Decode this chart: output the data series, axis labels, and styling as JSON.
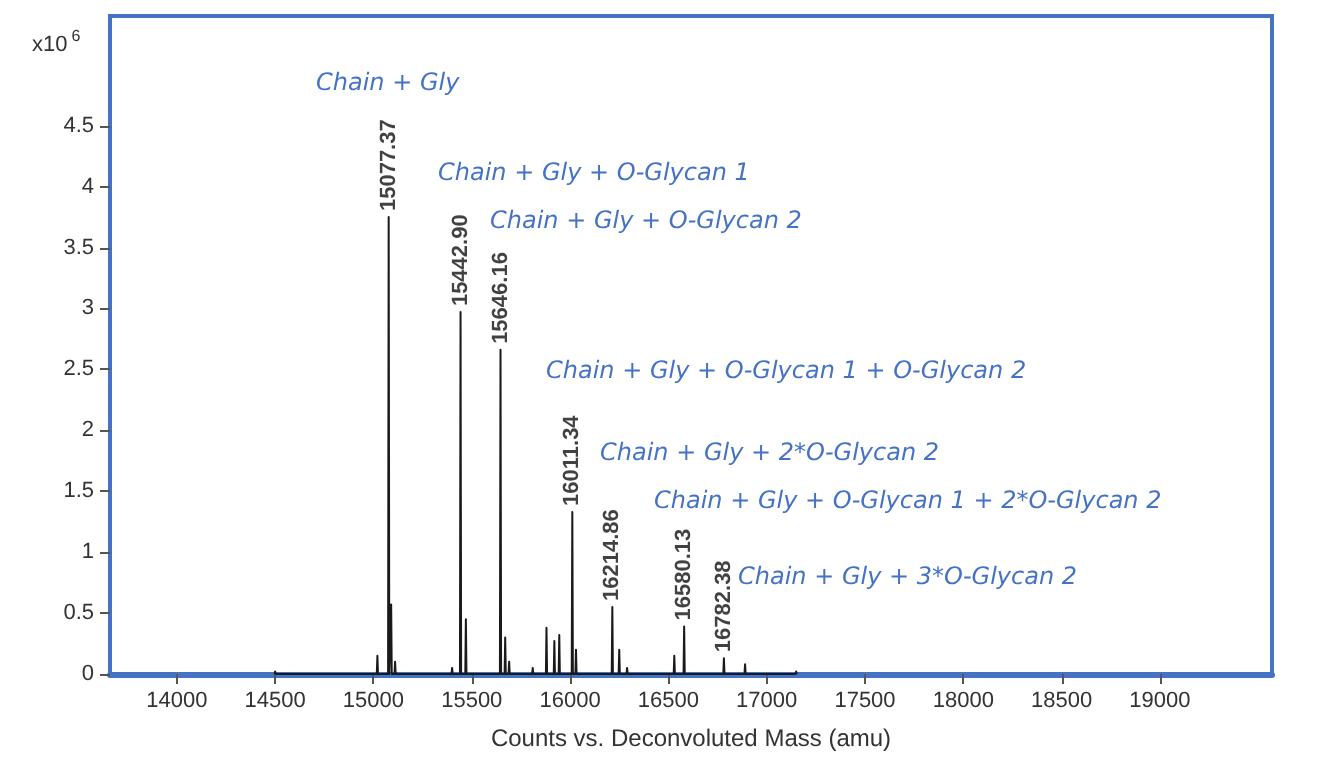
{
  "chart_data": {
    "type": "line",
    "xlabel": "Counts vs. Deconvoluted Mass (amu)",
    "ylabel": "x10$^{6}$",
    "x": [
      14497,
      14500,
      14503,
      15017,
      15020,
      15023,
      15074.37,
      15077.37,
      15080.37,
      15087,
      15090,
      15093,
      15107,
      15110,
      15113,
      15397,
      15400,
      15403,
      15439.9,
      15442.9,
      15445.9,
      15467,
      15470,
      15473,
      15643.16,
      15646.16,
      15649.16,
      15667,
      15670,
      15673,
      15687,
      15690,
      15693,
      15807,
      15810,
      15813,
      15877,
      15880,
      15883,
      15917,
      15920,
      15923,
      15942,
      15945,
      15948,
      16008.34,
      16011.34,
      16014.34,
      16027,
      16030,
      16033,
      16211.86,
      16214.86,
      16217.86,
      16247,
      16250,
      16253,
      16287,
      16290,
      16293,
      16527,
      16530,
      16533,
      16577.13,
      16580.13,
      16583.13,
      16779.38,
      16782.38,
      16785.38,
      16887,
      16890,
      16893,
      17147,
      17150,
      17153
    ],
    "series": [
      {
        "color": "#1a1a1a",
        "values": [
          0,
          0.02,
          0,
          0,
          0.15,
          0,
          0,
          3.75,
          0,
          0,
          0.57,
          0,
          0,
          0.1,
          0,
          0,
          0.05,
          0,
          0,
          2.97,
          0,
          0,
          0.45,
          0,
          0,
          2.66,
          0,
          0,
          0.3,
          0,
          0,
          0.1,
          0,
          0,
          0.05,
          0,
          0,
          0.38,
          0,
          0,
          0.27,
          0,
          0,
          0.32,
          0,
          0,
          1.33,
          0,
          0,
          0.2,
          0,
          0,
          0.55,
          0,
          0,
          0.2,
          0,
          0,
          0.05,
          0,
          0,
          0.15,
          0,
          0,
          0.39,
          0,
          0,
          0.13,
          0,
          0,
          0.08,
          0,
          0,
          0.02,
          0
        ]
      }
    ],
    "xlim": [
      13660,
      19570
    ],
    "xticks": [
      14000,
      14500,
      15000,
      15500,
      16000,
      16500,
      17000,
      17500,
      18000,
      18500,
      19000
    ],
    "ylim": [
      0,
      5.4
    ],
    "yticks": [
      0,
      0.5,
      1,
      1.5,
      2,
      2.5,
      3,
      3.5,
      4,
      4.5
    ],
    "grid": false,
    "marker": "none",
    "line_style": "solid",
    "annotations": [
      {
        "text": "15077.37",
        "x": 15077.37,
        "y": 3.75
      },
      {
        "text": "15442.90",
        "x": 15442.9,
        "y": 2.97
      },
      {
        "text": "15646.16",
        "x": 15646.16,
        "y": 2.66
      },
      {
        "text": "16011.34",
        "x": 16011.34,
        "y": 1.33
      },
      {
        "text": "16214.86",
        "x": 16214.86,
        "y": 0.55
      },
      {
        "text": "16580.13",
        "x": 16580.13,
        "y": 0.39
      },
      {
        "text": "16782.38",
        "x": 16782.38,
        "y": 0.13
      },
      "Chain + Gly",
      "Chain + Gly + O-Glycan 1",
      "Chain + Gly + O-Glycan 2",
      "Chain + Gly + O-Glycan 1 + O-Glycan 2",
      "Chain + Gly + 2*O-Glycan 2",
      "Chain + Gly + O-Glycan 1 + 2*O-Glycan 2",
      "Chain + Gly + 3*O-Glycan 2"
    ]
  }
}
